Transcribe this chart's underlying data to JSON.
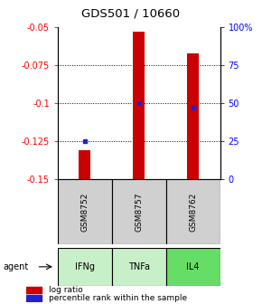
{
  "title": "GDS501 / 10660",
  "samples": [
    "GSM8752",
    "GSM8757",
    "GSM8762"
  ],
  "agents": [
    "IFNg",
    "TNFa",
    "IL4"
  ],
  "log_ratios": [
    -0.131,
    -0.053,
    -0.067
  ],
  "percentile_ranks": [
    25,
    50,
    47
  ],
  "ylim_left": [
    -0.15,
    -0.05
  ],
  "yticks_left": [
    -0.15,
    -0.125,
    -0.1,
    -0.075,
    -0.05
  ],
  "yticks_right": [
    0,
    25,
    50,
    75,
    100
  ],
  "bar_color": "#cc0000",
  "percentile_color": "#2222cc",
  "bar_bottom": -0.15,
  "sample_bg_color": "#d0d0d0",
  "agent_colors": [
    "#c8f0c8",
    "#c8f0c8",
    "#66dd66"
  ],
  "legend_bar_label": "log ratio",
  "legend_pct_label": "percentile rank within the sample"
}
